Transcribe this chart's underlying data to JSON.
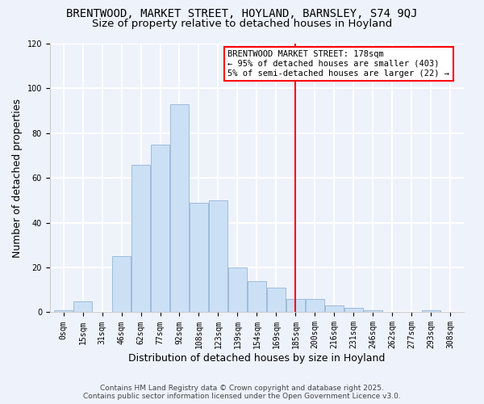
{
  "title": "BRENTWOOD, MARKET STREET, HOYLAND, BARNSLEY, S74 9QJ",
  "subtitle": "Size of property relative to detached houses in Hoyland",
  "xlabel": "Distribution of detached houses by size in Hoyland",
  "ylabel": "Number of detached properties",
  "bar_labels": [
    "0sqm",
    "15sqm",
    "31sqm",
    "46sqm",
    "62sqm",
    "77sqm",
    "92sqm",
    "108sqm",
    "123sqm",
    "139sqm",
    "154sqm",
    "169sqm",
    "185sqm",
    "200sqm",
    "216sqm",
    "231sqm",
    "246sqm",
    "262sqm",
    "277sqm",
    "293sqm",
    "308sqm"
  ],
  "bar_heights": [
    1,
    5,
    0,
    25,
    66,
    75,
    93,
    49,
    50,
    20,
    14,
    11,
    6,
    6,
    3,
    2,
    1,
    0,
    0,
    1,
    0
  ],
  "bar_color": "#cce0f5",
  "bar_edge_color": "#9bbcdc",
  "vline_x": 12.0,
  "annotation_line1": "BRENTWOOD MARKET STREET: 178sqm",
  "annotation_line2": "← 95% of detached houses are smaller (403)",
  "annotation_line3": "5% of semi-detached houses are larger (22) →",
  "ylim": [
    0,
    120
  ],
  "yticks": [
    0,
    20,
    40,
    60,
    80,
    100,
    120
  ],
  "footer1": "Contains HM Land Registry data © Crown copyright and database right 2025.",
  "footer2": "Contains public sector information licensed under the Open Government Licence v3.0.",
  "bg_color": "#eef2fb",
  "grid_color": "#ffffff",
  "title_fontsize": 10,
  "subtitle_fontsize": 9.5,
  "tick_fontsize": 7,
  "label_fontsize": 9,
  "footer_fontsize": 6.5
}
